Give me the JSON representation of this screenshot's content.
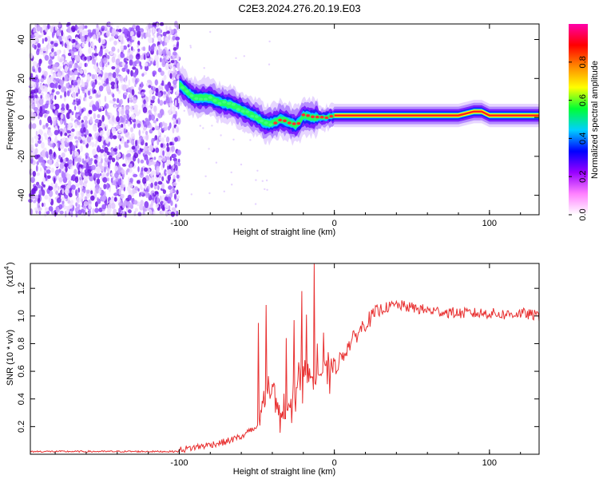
{
  "title": "C2E3.2024.276.20.19.E03",
  "chart_data": [
    {
      "type": "heatmap",
      "name": "spectrogram",
      "xlabel": "Height of straight line (km)",
      "ylabel": "Frequency (Hz)",
      "xlim": [
        -196,
        132
      ],
      "ylim": [
        -50,
        48
      ],
      "xticks": [
        -100,
        0,
        100
      ],
      "yticks": [
        -40,
        -20,
        0,
        20,
        40
      ],
      "noise_region_x": [
        -196,
        -100
      ],
      "ridge": {
        "x": [
          -100,
          -95,
          -90,
          -85,
          -80,
          -75,
          -70,
          -65,
          -60,
          -55,
          -50,
          -45,
          -40,
          -35,
          -30,
          -25,
          -22,
          -20,
          -15,
          -10,
          -5,
          0,
          5,
          10,
          20,
          40,
          60,
          80,
          90,
          95,
          100,
          120,
          132
        ],
        "y": [
          17,
          13,
          10,
          10,
          10,
          8,
          7,
          6,
          4,
          2,
          0,
          -3,
          -3,
          -1,
          -2,
          -4,
          -2,
          1,
          0,
          0,
          0,
          1,
          1,
          1,
          1,
          1,
          1,
          1,
          3,
          3,
          1,
          1,
          1
        ]
      },
      "colorbar": {
        "label": "Normalized spectral amplitude",
        "range": [
          0,
          1
        ],
        "ticks": [
          "0.0",
          "0.2",
          "0.4",
          "0.6",
          "0.8"
        ],
        "colors": [
          "#ffffff",
          "#ff80ff",
          "#9900ff",
          "#0000ff",
          "#00cfff",
          "#00ff33",
          "#ffff00",
          "#ff8800",
          "#ff0000",
          "#ff00aa"
        ]
      }
    },
    {
      "type": "line",
      "name": "snr",
      "xlabel": "Height of straight line (km)",
      "ylabel": "SNR (10 * v/v)",
      "multiplier": "(x10",
      "multiplier_exp": "4",
      "xlim": [
        -196,
        132
      ],
      "ylim": [
        0,
        1.38
      ],
      "xticks": [
        -100,
        0,
        100
      ],
      "yticks": [
        "0.2",
        "0.4",
        "0.6",
        "0.8",
        "1.0",
        "1.2"
      ],
      "color": "#e83030",
      "series_anchors": {
        "x": [
          -196,
          -100,
          -90,
          -80,
          -70,
          -60,
          -50,
          -45,
          -40,
          -35,
          -30,
          -25,
          -20,
          -15,
          -10,
          -5,
          0,
          10,
          20,
          30,
          40,
          50,
          60,
          70,
          80,
          90,
          100,
          110,
          120,
          132
        ],
        "y": [
          0.02,
          0.02,
          0.04,
          0.06,
          0.08,
          0.12,
          0.2,
          0.38,
          0.5,
          0.3,
          0.28,
          0.45,
          0.6,
          0.55,
          0.6,
          0.58,
          0.62,
          0.8,
          0.95,
          1.05,
          1.08,
          1.06,
          1.04,
          1.03,
          1.02,
          1.02,
          1.02,
          1.01,
          1.02,
          1.0
        ]
      },
      "spikes": [
        {
          "x": -49,
          "y": 0.95
        },
        {
          "x": -44,
          "y": 1.08
        },
        {
          "x": -31,
          "y": 0.84
        },
        {
          "x": -26,
          "y": 0.97
        },
        {
          "x": -21,
          "y": 1.18
        },
        {
          "x": -18,
          "y": 1.01
        },
        {
          "x": -13,
          "y": 1.38
        },
        {
          "x": -11,
          "y": 0.8
        },
        {
          "x": -7,
          "y": 0.88
        },
        {
          "x": 93,
          "y": 1.0
        }
      ]
    }
  ]
}
